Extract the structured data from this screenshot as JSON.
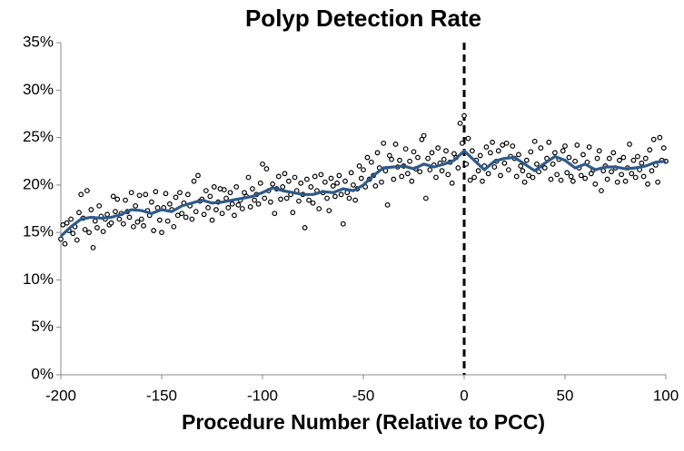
{
  "chart_data": {
    "type": "scatter-line",
    "title": "Polyp Detection Rate",
    "x_label": "Procedure Number (Relative to PCC)",
    "xlim": [
      -200,
      100
    ],
    "xticks": [
      -200,
      -150,
      -100,
      -50,
      0,
      50,
      100
    ],
    "ylim": [
      0,
      35
    ],
    "yticks": [
      {
        "value": 0,
        "label": "0%"
      },
      {
        "value": 5,
        "label": "5%"
      },
      {
        "value": 10,
        "label": "10%"
      },
      {
        "value": 15,
        "label": "15%"
      },
      {
        "value": 20,
        "label": "20%"
      },
      {
        "value": 25,
        "label": "25%"
      },
      {
        "value": 30,
        "label": "30%"
      },
      {
        "value": 35,
        "label": "35%"
      }
    ],
    "grid": false,
    "vline": 0,
    "series": [
      {
        "type": "scatter",
        "color": "#000000",
        "x": [
          -200,
          -199,
          -198,
          -197,
          -196,
          -195,
          -194,
          -193,
          -192,
          -191,
          -190,
          -189,
          -188,
          -187,
          -186,
          -185,
          -184,
          -183,
          -182,
          -181,
          -180,
          -179,
          -178,
          -177,
          -176,
          -175,
          -174,
          -173,
          -172,
          -171,
          -170,
          -169,
          -168,
          -167,
          -166,
          -165,
          -164,
          -163,
          -162,
          -161,
          -160,
          -159,
          -158,
          -157,
          -156,
          -155,
          -154,
          -153,
          -152,
          -151,
          -150,
          -149,
          -148,
          -147,
          -146,
          -145,
          -144,
          -143,
          -142,
          -141,
          -140,
          -139,
          -138,
          -137,
          -136,
          -135,
          -134,
          -133,
          -132,
          -131,
          -130,
          -129,
          -128,
          -127,
          -126,
          -125,
          -124,
          -123,
          -122,
          -121,
          -120,
          -119,
          -118,
          -117,
          -116,
          -115,
          -114,
          -113,
          -112,
          -111,
          -110,
          -109,
          -108,
          -107,
          -106,
          -105,
          -104,
          -103,
          -102,
          -101,
          -100,
          -99,
          -98,
          -97,
          -96,
          -95,
          -94,
          -93,
          -92,
          -91,
          -90,
          -89,
          -88,
          -87,
          -86,
          -85,
          -84,
          -83,
          -82,
          -81,
          -80,
          -79,
          -78,
          -77,
          -76,
          -75,
          -74,
          -73,
          -72,
          -71,
          -70,
          -69,
          -68,
          -67,
          -66,
          -65,
          -64,
          -63,
          -62,
          -61,
          -60,
          -59,
          -58,
          -57,
          -56,
          -55,
          -54,
          -53,
          -52,
          -51,
          -50,
          -49,
          -48,
          -47,
          -46,
          -45,
          -44,
          -43,
          -42,
          -41,
          -40,
          -39,
          -38,
          -37,
          -36,
          -35,
          -34,
          -33,
          -32,
          -31,
          -30,
          -29,
          -28,
          -27,
          -26,
          -25,
          -24,
          -23,
          -22,
          -21,
          -20,
          -19,
          -18,
          -17,
          -16,
          -15,
          -14,
          -13,
          -12,
          -11,
          -10,
          -9,
          -8,
          -7,
          -6,
          -5,
          -4,
          -3,
          -2,
          -1,
          0,
          1,
          2,
          3,
          4,
          5,
          6,
          7,
          8,
          9,
          10,
          11,
          12,
          13,
          14,
          15,
          16,
          17,
          18,
          19,
          20,
          21,
          22,
          23,
          24,
          25,
          26,
          27,
          28,
          29,
          30,
          31,
          32,
          33,
          34,
          35,
          36,
          37,
          38,
          39,
          40,
          41,
          42,
          43,
          44,
          45,
          46,
          47,
          48,
          49,
          50,
          51,
          52,
          53,
          54,
          55,
          56,
          57,
          58,
          59,
          60,
          61,
          62,
          63,
          64,
          65,
          66,
          67,
          68,
          69,
          70,
          71,
          72,
          73,
          74,
          75,
          76,
          77,
          78,
          79,
          80,
          81,
          82,
          83,
          84,
          85,
          86,
          87,
          88,
          89,
          90,
          91,
          92,
          93,
          94,
          95,
          96,
          97,
          98,
          99,
          100
        ],
        "values": [
          14.3,
          15.8,
          13.8,
          16.0,
          15.2,
          16.4,
          14.9,
          15.6,
          14.2,
          17.1,
          19.0,
          16.5,
          15.3,
          19.4,
          15.0,
          17.4,
          13.4,
          16.2,
          15.5,
          17.8,
          16.7,
          15.1,
          16.4,
          16.9,
          15.8,
          16.0,
          18.8,
          17.2,
          18.5,
          16.4,
          17.0,
          15.9,
          18.4,
          17.2,
          16.6,
          19.2,
          15.6,
          17.8,
          16.1,
          18.9,
          16.4,
          15.7,
          19.0,
          17.3,
          16.8,
          18.2,
          15.2,
          19.3,
          17.6,
          16.3,
          15.0,
          17.6,
          19.1,
          16.2,
          18.0,
          17.4,
          15.6,
          18.7,
          16.8,
          19.2,
          17.0,
          18.1,
          16.6,
          19.0,
          17.8,
          16.4,
          20.4,
          17.2,
          21.0,
          18.3,
          18.5,
          16.9,
          19.4,
          17.6,
          18.8,
          16.3,
          19.8,
          17.4,
          18.2,
          19.6,
          17.0,
          19.5,
          18.6,
          17.6,
          19.2,
          18.0,
          16.8,
          19.8,
          17.9,
          18.4,
          17.5,
          19.2,
          18.8,
          20.8,
          17.7,
          19.6,
          18.4,
          19.0,
          18.0,
          20.2,
          22.2,
          18.6,
          21.7,
          19.4,
          18.2,
          20.1,
          17.0,
          19.6,
          20.9,
          18.5,
          19.8,
          21.2,
          18.6,
          20.4,
          19.0,
          17.1,
          20.8,
          19.4,
          18.3,
          20.2,
          19.0,
          15.5,
          20.6,
          18.4,
          19.8,
          18.1,
          20.9,
          19.4,
          17.5,
          21.1,
          19.2,
          20.3,
          18.6,
          17.3,
          20.7,
          19.9,
          18.8,
          20.2,
          21.0,
          19.0,
          15.9,
          20.4,
          19.2,
          18.6,
          21.3,
          20.0,
          18.4,
          19.6,
          22.0,
          20.7,
          21.6,
          19.8,
          22.9,
          20.6,
          22.4,
          21.0,
          19.9,
          23.4,
          21.8,
          20.3,
          24.4,
          21.5,
          17.9,
          23.1,
          22.7,
          20.6,
          24.3,
          21.9,
          22.6,
          20.9,
          22.0,
          23.8,
          21.2,
          22.5,
          20.4,
          23.5,
          21.7,
          22.9,
          21.4,
          24.8,
          25.2,
          18.6,
          22.8,
          21.6,
          23.4,
          22.1,
          20.8,
          23.9,
          22.3,
          21.5,
          22.7,
          23.6,
          21.1,
          22.4,
          20.2,
          23.3,
          22.9,
          21.8,
          26.5,
          24.4,
          27.3,
          22.2,
          24.9,
          20.5,
          23.6,
          20.8,
          22.6,
          21.5,
          23.1,
          20.4,
          22.0,
          24.0,
          21.2,
          23.4,
          24.5,
          21.9,
          22.5,
          23.6,
          21.0,
          24.2,
          22.3,
          24.4,
          21.6,
          23.0,
          24.1,
          22.8,
          20.9,
          23.2,
          22.0,
          21.5,
          20.3,
          22.6,
          21.0,
          23.5,
          20.8,
          24.6,
          22.2,
          21.4,
          23.9,
          22.0,
          21.8,
          22.8,
          24.5,
          20.6,
          22.2,
          23.4,
          21.1,
          22.7,
          20.5,
          23.6,
          24.1,
          21.3,
          22.9,
          20.9,
          20.4,
          22.5,
          24.2,
          21.8,
          21.0,
          23.2,
          20.7,
          22.4,
          24.0,
          21.2,
          21.6,
          20.1,
          22.8,
          23.6,
          19.4,
          21.5,
          22.0,
          20.6,
          22.8,
          21.4,
          23.4,
          21.8,
          20.3,
          22.6,
          21.1,
          22.9,
          20.4,
          21.8,
          24.3,
          21.2,
          22.6,
          20.8,
          23.0,
          21.6,
          22.3,
          20.9,
          22.8,
          20.1,
          23.7,
          21.5,
          24.8,
          22.1,
          20.3,
          25.0,
          22.6,
          23.9,
          22.5
        ]
      },
      {
        "type": "line",
        "color": "#2e5a8a",
        "x": [
          -200,
          -195,
          -190,
          -185,
          -180,
          -175,
          -170,
          -165,
          -160,
          -155,
          -150,
          -145,
          -140,
          -135,
          -130,
          -125,
          -120,
          -115,
          -110,
          -105,
          -100,
          -95,
          -90,
          -85,
          -80,
          -75,
          -70,
          -65,
          -60,
          -55,
          -50,
          -45,
          -40,
          -35,
          -30,
          -25,
          -20,
          -15,
          -10,
          -5,
          0,
          5,
          10,
          15,
          20,
          25,
          30,
          35,
          40,
          45,
          50,
          55,
          60,
          65,
          70,
          75,
          80,
          85,
          90,
          95,
          100
        ],
        "values": [
          14.6,
          15.6,
          16.4,
          16.6,
          16.5,
          16.6,
          16.9,
          17.4,
          17.3,
          17.0,
          17.4,
          17.2,
          17.8,
          18.1,
          18.4,
          18.1,
          18.2,
          18.4,
          18.6,
          18.8,
          19.2,
          19.7,
          19.4,
          19.2,
          19.0,
          19.0,
          19.3,
          19.2,
          19.6,
          19.4,
          20.0,
          21.0,
          21.8,
          21.9,
          22.0,
          21.7,
          22.2,
          21.9,
          22.2,
          22.6,
          23.6,
          22.6,
          21.6,
          22.5,
          22.8,
          22.9,
          22.2,
          21.5,
          22.3,
          23.0,
          22.6,
          21.8,
          22.2,
          21.6,
          21.9,
          21.9,
          21.7,
          21.8,
          22.0,
          22.4,
          22.5
        ]
      }
    ]
  }
}
